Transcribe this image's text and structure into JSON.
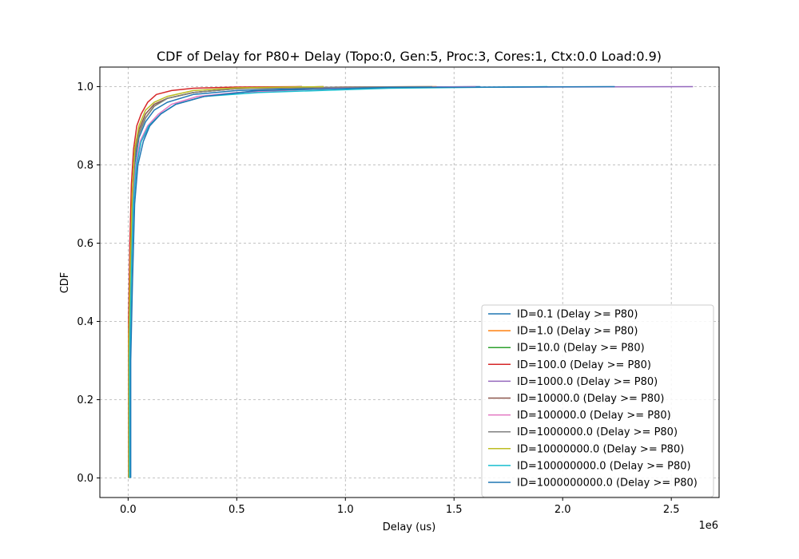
{
  "chart_data": {
    "type": "line",
    "title": "CDF of Delay for P80+ Delay (Topo:0, Gen:5, Proc:3, Cores:1, Ctx:0.0 Load:0.9)",
    "xlabel": "Delay (us)",
    "ylabel": "CDF",
    "x_offset_label": "1e6",
    "xlim": [
      -0.13,
      2.72
    ],
    "ylim": [
      -0.05,
      1.05
    ],
    "x_ticks": [
      0.0,
      0.5,
      1.0,
      1.5,
      2.0,
      2.5
    ],
    "x_tick_labels": [
      "0.0",
      "0.5",
      "1.0",
      "1.5",
      "2.0",
      "2.5"
    ],
    "y_ticks": [
      0.0,
      0.2,
      0.4,
      0.6,
      0.8,
      1.0
    ],
    "y_tick_labels": [
      "0.0",
      "0.2",
      "0.4",
      "0.6",
      "0.8",
      "1.0"
    ],
    "grid": true,
    "legend_position": "lower-right",
    "series": [
      {
        "name": "ID=0.1 (Delay >= P80)",
        "color": "#1f77b4",
        "x": [
          0.005,
          0.005,
          0.01,
          0.02,
          0.03,
          0.05,
          0.08,
          0.12,
          0.18,
          0.3,
          0.5,
          1.0,
          1.62
        ],
        "y": [
          0.0,
          0.3,
          0.5,
          0.7,
          0.8,
          0.87,
          0.91,
          0.94,
          0.96,
          0.98,
          0.99,
          0.998,
          1.0
        ]
      },
      {
        "name": "ID=1.0 (Delay >= P80)",
        "color": "#ff7f0e",
        "x": [
          0.004,
          0.004,
          0.01,
          0.02,
          0.03,
          0.05,
          0.08,
          0.12,
          0.18,
          0.3,
          0.5,
          1.0,
          1.42
        ],
        "y": [
          0.0,
          0.3,
          0.52,
          0.72,
          0.82,
          0.88,
          0.92,
          0.95,
          0.97,
          0.985,
          0.995,
          0.999,
          1.0
        ]
      },
      {
        "name": "ID=10.0 (Delay >= P80)",
        "color": "#2ca02c",
        "x": [
          0.004,
          0.004,
          0.01,
          0.02,
          0.03,
          0.05,
          0.08,
          0.12,
          0.18,
          0.3,
          0.5,
          0.8
        ],
        "y": [
          0.0,
          0.3,
          0.52,
          0.72,
          0.82,
          0.88,
          0.92,
          0.95,
          0.97,
          0.985,
          0.995,
          1.0
        ]
      },
      {
        "name": "ID=100.0 (Delay >= P80)",
        "color": "#d62728",
        "x": [
          0.002,
          0.002,
          0.008,
          0.015,
          0.025,
          0.04,
          0.06,
          0.09,
          0.13,
          0.2,
          0.3,
          0.5,
          0.8
        ],
        "y": [
          0.0,
          0.4,
          0.6,
          0.75,
          0.84,
          0.9,
          0.93,
          0.96,
          0.98,
          0.99,
          0.996,
          0.999,
          1.0
        ]
      },
      {
        "name": "ID=1000.0 (Delay >= P80)",
        "color": "#9467bd",
        "x": [
          0.008,
          0.008,
          0.015,
          0.025,
          0.04,
          0.06,
          0.1,
          0.15,
          0.22,
          0.35,
          0.6,
          1.2,
          2.6
        ],
        "y": [
          0.0,
          0.3,
          0.5,
          0.7,
          0.8,
          0.86,
          0.9,
          0.93,
          0.955,
          0.975,
          0.99,
          0.998,
          1.0
        ]
      },
      {
        "name": "ID=10000.0 (Delay >= P80)",
        "color": "#8c564b",
        "x": [
          0.003,
          0.003,
          0.01,
          0.02,
          0.03,
          0.05,
          0.08,
          0.12,
          0.18,
          0.3,
          0.5,
          0.9
        ],
        "y": [
          0.0,
          0.35,
          0.55,
          0.73,
          0.83,
          0.89,
          0.93,
          0.955,
          0.97,
          0.985,
          0.995,
          1.0
        ]
      },
      {
        "name": "ID=100000.0 (Delay >= P80)",
        "color": "#e377c2",
        "x": [
          0.006,
          0.006,
          0.012,
          0.022,
          0.035,
          0.055,
          0.09,
          0.14,
          0.2,
          0.32,
          0.5,
          1.0,
          1.6
        ],
        "y": [
          0.0,
          0.3,
          0.5,
          0.7,
          0.8,
          0.86,
          0.9,
          0.93,
          0.955,
          0.975,
          0.985,
          0.997,
          1.0
        ]
      },
      {
        "name": "ID=1000000.0 (Delay >= P80)",
        "color": "#7f7f7f",
        "x": [
          0.004,
          0.004,
          0.01,
          0.02,
          0.03,
          0.05,
          0.08,
          0.12,
          0.18,
          0.3,
          0.5,
          1.0,
          1.4
        ],
        "y": [
          0.0,
          0.3,
          0.52,
          0.72,
          0.82,
          0.88,
          0.92,
          0.95,
          0.97,
          0.985,
          0.995,
          0.999,
          1.0
        ]
      },
      {
        "name": "ID=10000000.0 (Delay >= P80)",
        "color": "#bcbd22",
        "x": [
          0.003,
          0.003,
          0.01,
          0.02,
          0.03,
          0.05,
          0.08,
          0.12,
          0.18,
          0.3,
          0.5,
          0.9
        ],
        "y": [
          0.0,
          0.35,
          0.55,
          0.74,
          0.84,
          0.9,
          0.94,
          0.96,
          0.975,
          0.99,
          0.997,
          1.0
        ]
      },
      {
        "name": "ID=100000000.0 (Delay >= P80)",
        "color": "#17becf",
        "x": [
          0.007,
          0.007,
          0.014,
          0.024,
          0.038,
          0.06,
          0.095,
          0.15,
          0.22,
          0.35,
          0.6,
          1.2,
          1.93
        ],
        "y": [
          0.0,
          0.3,
          0.5,
          0.7,
          0.8,
          0.86,
          0.9,
          0.93,
          0.955,
          0.975,
          0.985,
          0.996,
          1.0
        ]
      },
      {
        "name": "ID=1000000000.0 (Delay >= P80)",
        "color": "#1f77b4",
        "x": [
          0.012,
          0.012,
          0.02,
          0.03,
          0.045,
          0.07,
          0.1,
          0.15,
          0.22,
          0.35,
          0.6,
          1.2,
          2.24
        ],
        "y": [
          0.0,
          0.3,
          0.5,
          0.7,
          0.8,
          0.86,
          0.9,
          0.93,
          0.955,
          0.975,
          0.99,
          0.998,
          1.0
        ]
      }
    ]
  }
}
